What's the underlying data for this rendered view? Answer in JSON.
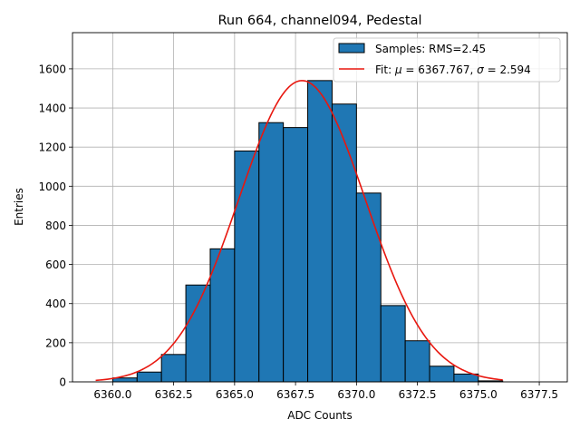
{
  "chart_data": {
    "type": "bar",
    "title": "Run 664, channel094, Pedestal",
    "xlabel": "ADC Counts",
    "ylabel": "Entries",
    "xlim": [
      6358.35,
      6378.65
    ],
    "ylim": [
      0,
      1785
    ],
    "xticks": [
      6360.0,
      6362.5,
      6365.0,
      6367.5,
      6370.0,
      6372.5,
      6375.0,
      6377.5
    ],
    "xtick_labels": [
      "6360.0",
      "6362.5",
      "6365.0",
      "6367.5",
      "6370.0",
      "6372.5",
      "6375.0",
      "6377.5"
    ],
    "yticks": [
      0,
      200,
      400,
      600,
      800,
      1000,
      1200,
      1400,
      1600
    ],
    "ytick_labels": [
      "0",
      "200",
      "400",
      "600",
      "800",
      "1000",
      "1200",
      "1400",
      "1600"
    ],
    "grid": true,
    "legend_position": "top-right",
    "bins": [
      {
        "x0": 6360.0,
        "x1": 6361.0,
        "count": 20
      },
      {
        "x0": 6361.0,
        "x1": 6362.0,
        "count": 50
      },
      {
        "x0": 6362.0,
        "x1": 6363.0,
        "count": 140
      },
      {
        "x0": 6363.0,
        "x1": 6364.0,
        "count": 495
      },
      {
        "x0": 6364.0,
        "x1": 6365.0,
        "count": 680
      },
      {
        "x0": 6365.0,
        "x1": 6366.0,
        "count": 1180
      },
      {
        "x0": 6366.0,
        "x1": 6367.0,
        "count": 1325
      },
      {
        "x0": 6367.0,
        "x1": 6368.0,
        "count": 1300
      },
      {
        "x0": 6368.0,
        "x1": 6369.0,
        "count": 1540
      },
      {
        "x0": 6369.0,
        "x1": 6370.0,
        "count": 1420
      },
      {
        "x0": 6370.0,
        "x1": 6371.0,
        "count": 965
      },
      {
        "x0": 6371.0,
        "x1": 6372.0,
        "count": 390
      },
      {
        "x0": 6372.0,
        "x1": 6373.0,
        "count": 210
      },
      {
        "x0": 6373.0,
        "x1": 6374.0,
        "count": 80
      },
      {
        "x0": 6374.0,
        "x1": 6375.0,
        "count": 40
      },
      {
        "x0": 6375.0,
        "x1": 6376.0,
        "count": 5
      }
    ],
    "fit": {
      "mu": 6367.767,
      "sigma": 2.594,
      "amplitude": 1540,
      "x_range": [
        6359.3,
        6376.0
      ]
    },
    "series": [
      {
        "name": "Samples: RMS=2.45",
        "kind": "histogram",
        "color": "#1f77b4"
      },
      {
        "name": "Fit",
        "kind": "line",
        "color": "#e8170f"
      }
    ],
    "legend": {
      "samples_label": "Samples: RMS=2.45",
      "fit_prefix": "Fit: ",
      "mu_symbol": "μ",
      "mu_text": " = 6367.767, ",
      "sigma_symbol": "σ",
      "sigma_text": " = 2.594"
    },
    "colors": {
      "bar_fill": "#1f77b4",
      "bar_edge": "#000000",
      "fit_line": "#e8170f",
      "grid": "#b0b0b0"
    }
  }
}
